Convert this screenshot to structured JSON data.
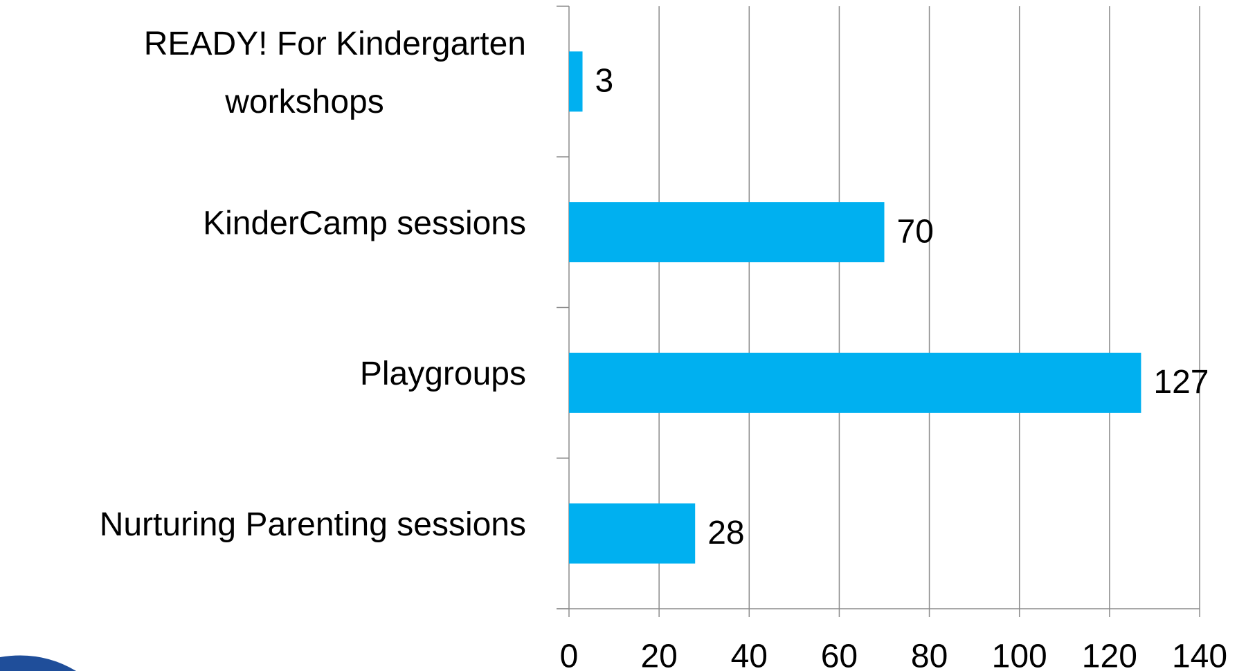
{
  "chart_data": {
    "type": "bar",
    "orientation": "horizontal",
    "categories": [
      "READY! For Kindergarten workshops",
      "KinderCamp sessions",
      "Playgroups",
      "Nurturing Parenting sessions"
    ],
    "values": [
      3,
      70,
      127,
      28
    ],
    "color": "#00b0f0",
    "xlim": [
      0,
      140
    ],
    "xticks": [
      0,
      20,
      40,
      60,
      80,
      100,
      120,
      140
    ],
    "grid": true
  }
}
